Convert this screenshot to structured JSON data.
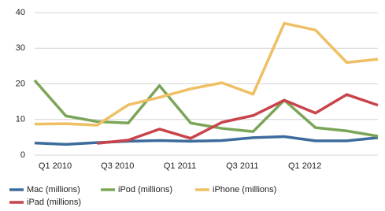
{
  "chart_data": {
    "type": "line",
    "categories": [
      "Q1 2010",
      null,
      "Q3 2010",
      null,
      "Q1 2011",
      null,
      "Q3 2011",
      null,
      "Q1 2012",
      null,
      null,
      null
    ],
    "series": [
      {
        "name": "Mac (millions)",
        "color": "#3d6b9c",
        "values": [
          3.4,
          3.0,
          3.5,
          3.9,
          4.1,
          3.9,
          4.1,
          4.9,
          5.2,
          4.0,
          4.0,
          4.9
        ]
      },
      {
        "name": "iPod (millions)",
        "color": "#7ba658",
        "values": [
          21.0,
          11.0,
          9.4,
          9.0,
          19.5,
          9.0,
          7.5,
          6.6,
          15.4,
          7.7,
          6.8,
          5.3
        ]
      },
      {
        "name": "iPhone (millions)",
        "color": "#efbf63",
        "values": [
          8.7,
          8.8,
          8.4,
          14.1,
          16.2,
          18.6,
          20.3,
          17.1,
          37.0,
          35.1,
          26.0,
          26.9
        ]
      },
      {
        "name": "iPad (millions)",
        "color": "#c8444b",
        "values": [
          null,
          null,
          3.3,
          4.2,
          7.3,
          4.7,
          9.2,
          11.1,
          15.4,
          11.8,
          17.0,
          14.0
        ]
      }
    ],
    "ylim": [
      0,
      40
    ],
    "yticks": [
      0,
      10,
      20,
      30,
      40
    ],
    "grid": true
  }
}
